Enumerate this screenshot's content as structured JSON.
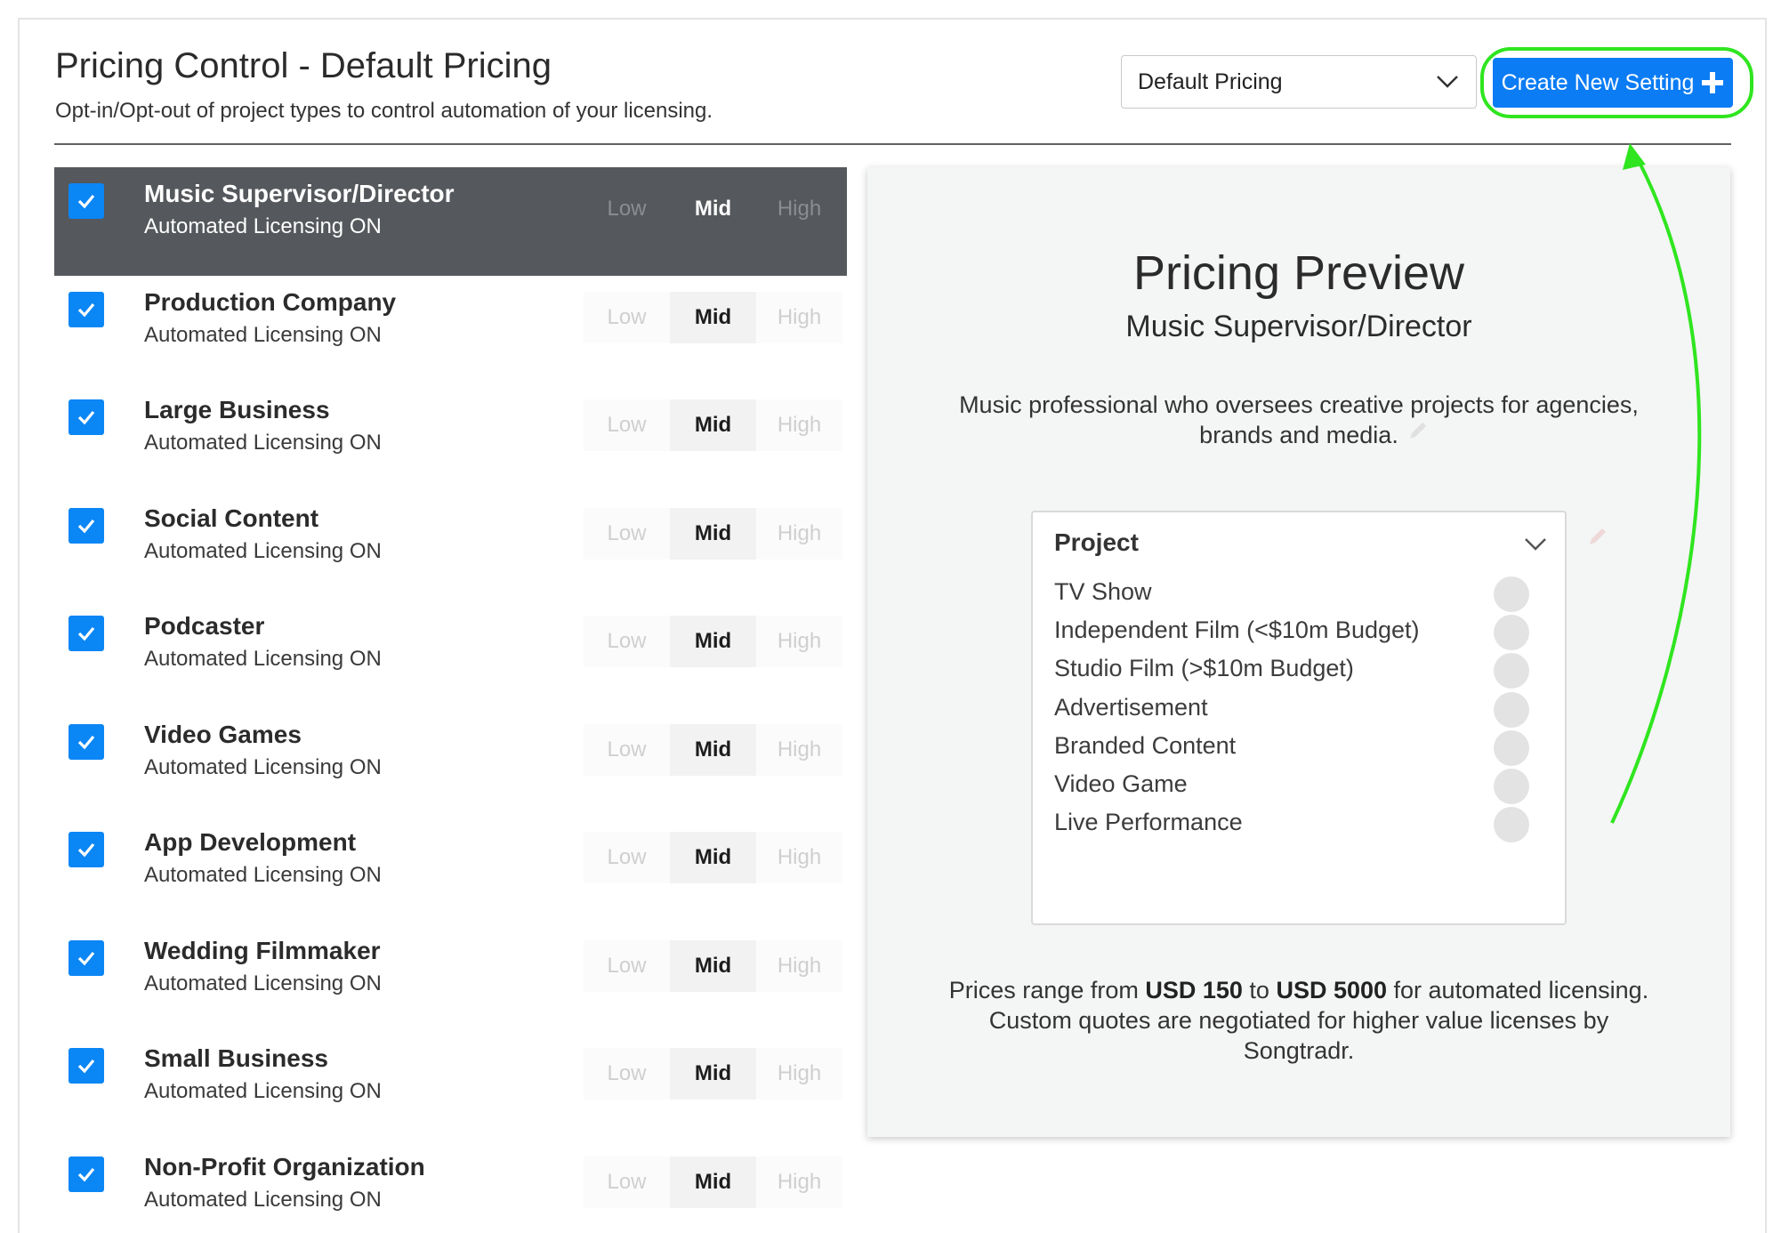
{
  "header": {
    "title": "Pricing Control - Default Pricing",
    "subtitle": "Opt-in/Opt-out of project types to control automation of your licensing.",
    "select_value": "Default Pricing",
    "create_button_label": "Create New Setting"
  },
  "accent_colors": {
    "primary": "#0b7cf4",
    "highlight": "#2fe51f",
    "active_row": "#55585c"
  },
  "icons": [
    "check-icon",
    "chevron-down-icon",
    "plus-icon",
    "pencil-icon",
    "arrow-annotation"
  ],
  "list": {
    "levels": {
      "low": "Low",
      "mid": "Mid",
      "high": "High"
    },
    "items": [
      {
        "title": "Music Supervisor/Director",
        "status": "Automated Licensing ON",
        "checked": true,
        "selected_level": "Mid",
        "active": true
      },
      {
        "title": "Production Company",
        "status": "Automated Licensing ON",
        "checked": true,
        "selected_level": "Mid"
      },
      {
        "title": "Large Business",
        "status": "Automated Licensing ON",
        "checked": true,
        "selected_level": "Mid"
      },
      {
        "title": "Social Content",
        "status": "Automated Licensing ON",
        "checked": true,
        "selected_level": "Mid"
      },
      {
        "title": "Podcaster",
        "status": "Automated Licensing ON",
        "checked": true,
        "selected_level": "Mid"
      },
      {
        "title": "Video Games",
        "status": "Automated Licensing ON",
        "checked": true,
        "selected_level": "Mid"
      },
      {
        "title": "App Development",
        "status": "Automated Licensing ON",
        "checked": true,
        "selected_level": "Mid"
      },
      {
        "title": "Wedding Filmmaker",
        "status": "Automated Licensing ON",
        "checked": true,
        "selected_level": "Mid"
      },
      {
        "title": "Small Business",
        "status": "Automated Licensing ON",
        "checked": true,
        "selected_level": "Mid"
      },
      {
        "title": "Non-Profit Organization",
        "status": "Automated Licensing ON",
        "checked": true,
        "selected_level": "Mid"
      }
    ]
  },
  "preview": {
    "title": "Pricing Preview",
    "subtitle": "Music Supervisor/Director",
    "description": "Music professional who oversees creative projects for agencies, brands and media.",
    "project_header": "Project",
    "projects": [
      "TV Show",
      "Independent Film (<$10m Budget)",
      "Studio Film (>$10m Budget)",
      "Advertisement",
      "Branded Content",
      "Video Game",
      "Live Performance"
    ],
    "prices": {
      "prefix": "Prices range from ",
      "min": "USD 150",
      "to": " to ",
      "max": "USD 5000",
      "suffix": " for automated licensing. Custom quotes are negotiated for higher value licenses by Songtradr."
    }
  }
}
